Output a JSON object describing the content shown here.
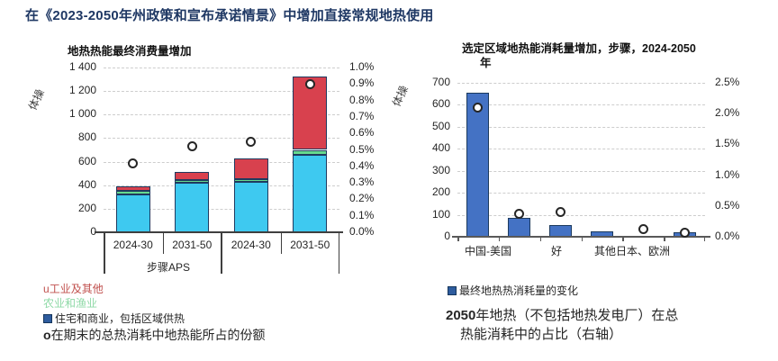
{
  "page_title": "在《2023-2050年州政策和宣布承诺情景》中增加直接常规地热使用",
  "colors": {
    "title_blue": "#1f3864",
    "residential_cyan": "#3ec9f0",
    "agriculture_green": "#66d98e",
    "industry_red": "#d8414e",
    "bar_blue": "#4472c4",
    "bar_border_navy": "#1f3a5f",
    "legend_red": "#c0504d",
    "legend_green": "#8ed9a6",
    "marker_outline": "#262626"
  },
  "chart_data": [
    {
      "type": "bar",
      "stacked": true,
      "title": "地热热能最终消费量增加",
      "ylabel": "体操",
      "categories": [
        "2024-30",
        "2031-50",
        "2024-30",
        "2031-50"
      ],
      "group_labels": [
        "步骤",
        "APS"
      ],
      "series": [
        {
          "name": "住宅和商业，包括区域供热",
          "color": "#3ec9f0",
          "values": [
            325,
            420,
            430,
            660
          ]
        },
        {
          "name": "农业和渔业",
          "color": "#66d98e",
          "values": [
            25,
            25,
            25,
            40
          ]
        },
        {
          "name": "工业及其他",
          "color": "#d8414e",
          "values": [
            40,
            70,
            175,
            620
          ]
        }
      ],
      "markers": {
        "name": "在期末的总热消耗中地热能所占的份额",
        "axis": "right",
        "values_pct": [
          0.42,
          0.52,
          0.55,
          0.9
        ]
      },
      "ylim_left": [
        0,
        1400
      ],
      "ytick_labels_left": [
        "0",
        "200",
        "400",
        "600",
        "800",
        "1 000",
        "1 200",
        "1 400"
      ],
      "ylim_right_pct": [
        0,
        1.0
      ],
      "ytick_labels_right": [
        "0.0%",
        "0.1%",
        "0.2%",
        "0.3%",
        "0.4%",
        "0.5%",
        "0.6%",
        "0.7%",
        "0.8%",
        "0.9%",
        "1.0%"
      ],
      "grid": true,
      "legend_position": "below"
    },
    {
      "type": "bar",
      "stacked": false,
      "title_pre": "选定区域地热能消耗量增加，步骤，",
      "title_bold": "2024-2050",
      "title_line2": "年",
      "ylabel": "体操",
      "categories": [
        "中国",
        "美国",
        "好",
        "其他",
        "日本",
        "欧洲"
      ],
      "x_axis_display_labels": [
        "中国-美国",
        "好",
        "其他日本、欧洲"
      ],
      "series": [
        {
          "name": "最终地热热消耗量的变化",
          "color": "#4472c4",
          "values": [
            655,
            85,
            52,
            25,
            6,
            20
          ]
        }
      ],
      "markers": {
        "name": "2050年地热（不包括地热发电厂）在总热能消耗中的占比（右轴）",
        "axis": "right",
        "values_pct": [
          2.1,
          0.38,
          0.4,
          null,
          0.13,
          0.06
        ]
      },
      "ylim_left": [
        0,
        700
      ],
      "ytick_labels_left": [
        "0",
        "100",
        "200",
        "300",
        "400",
        "500",
        "600",
        "700"
      ],
      "ylim_right_pct": [
        0,
        2.5
      ],
      "ytick_labels_right": [
        "0.0%",
        "0.5%",
        "1.0%",
        "1.5%",
        "2.0%",
        "2.5%"
      ],
      "grid": true,
      "legend_position": "below"
    }
  ],
  "left_legend": [
    {
      "bullet": "u",
      "icon": "bullet-u-icon",
      "label": "工业及其他"
    },
    {
      "bullet": "",
      "icon": "none",
      "label": "农业和渔业"
    },
    {
      "bullet": "",
      "icon": "square-icon",
      "label": "住宅和商业，包括区域供热"
    },
    {
      "bullet": "o",
      "icon": "circle-marker-icon",
      "label": "在期末的总热消耗中地热能所占的份额"
    }
  ],
  "right_legend": {
    "icon": "square-icon",
    "label": "最终地热热消耗量的变化"
  },
  "caption": {
    "bold": "2050",
    "line1_rest": "年地热（不包括地热发电厂）在总",
    "line2": "热能消耗中的占比（右轴）"
  }
}
